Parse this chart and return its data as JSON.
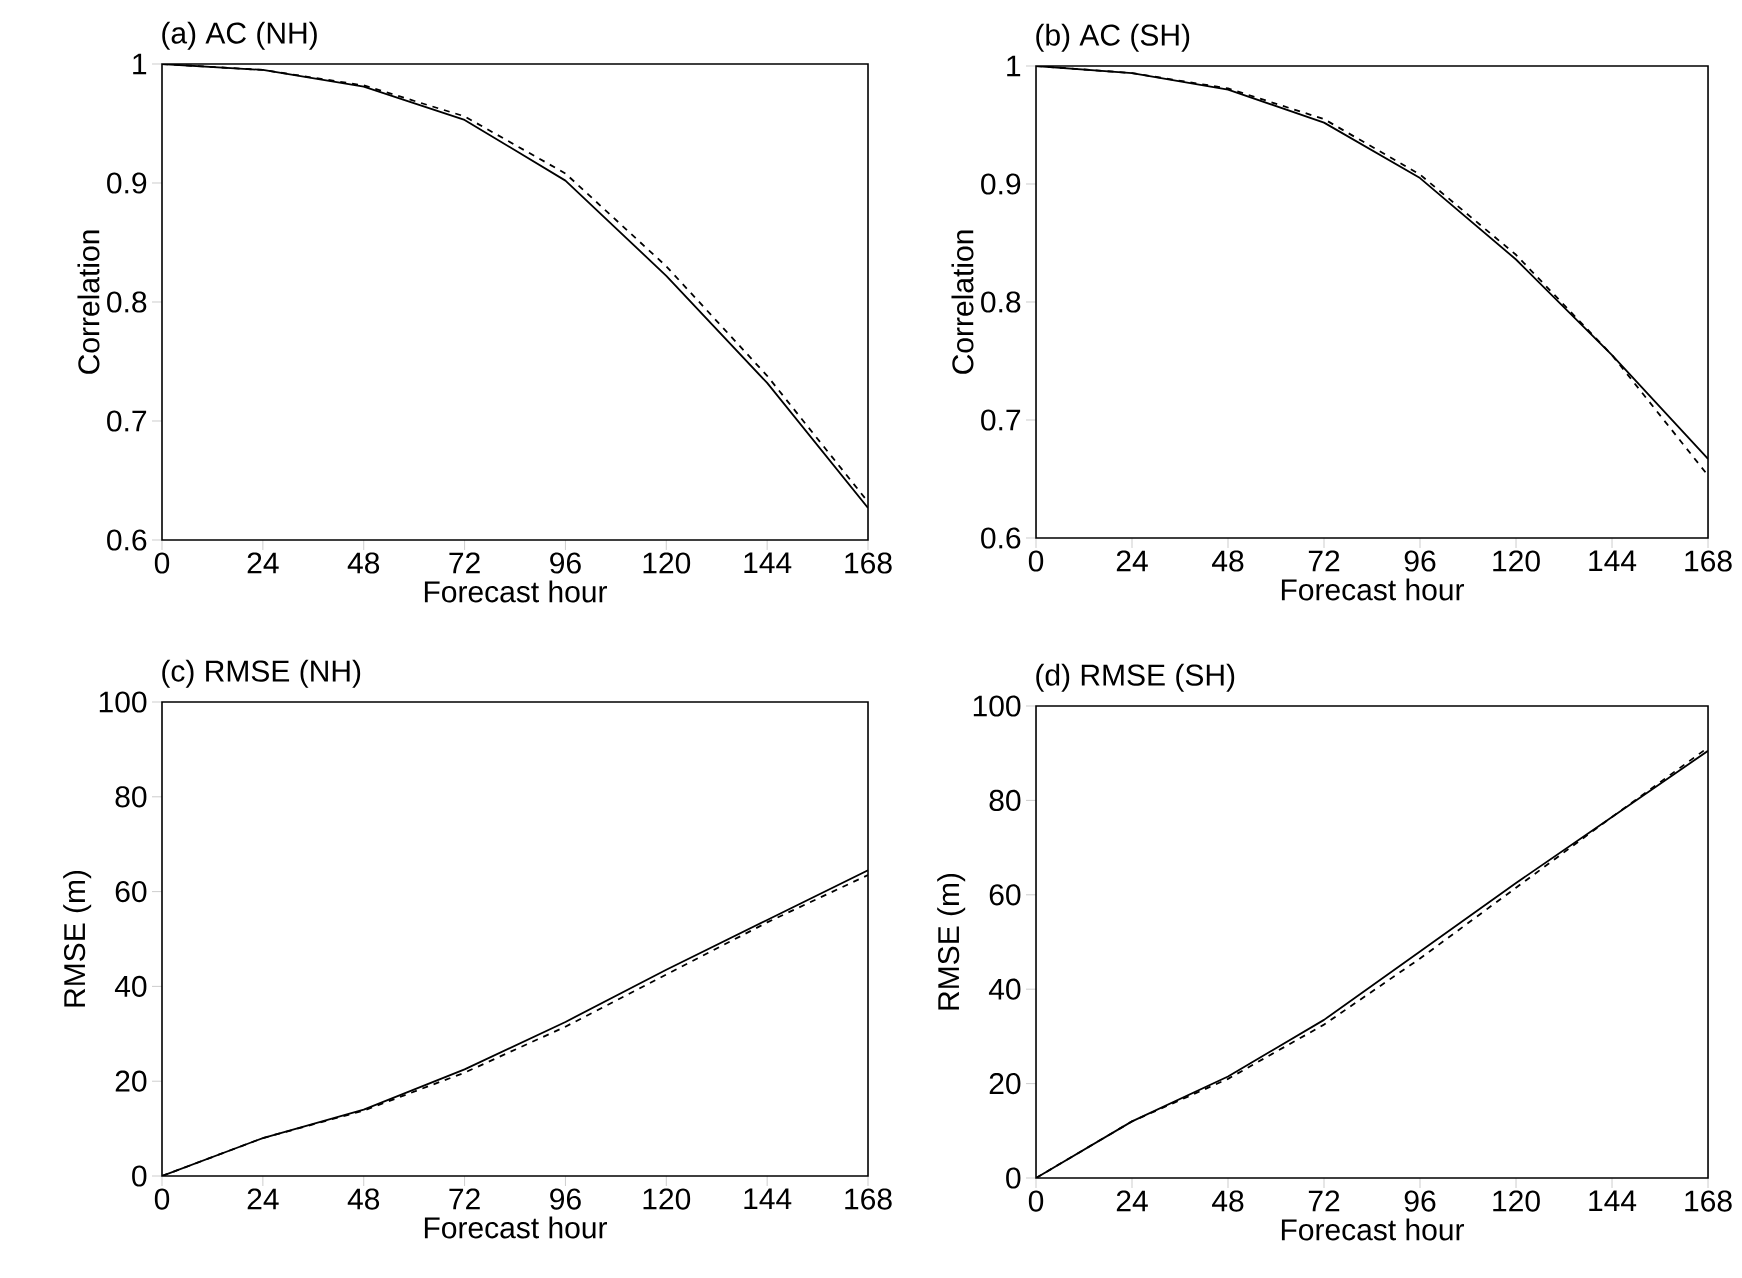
{
  "chart_data": [
    {
      "type": "line",
      "title": "(a) AC (NH)",
      "xlabel": "Forecast hour",
      "ylabel": "Correlation",
      "x": [
        0,
        24,
        48,
        72,
        96,
        120,
        144,
        168
      ],
      "xlim": [
        0,
        168
      ],
      "xticks": [
        0,
        24,
        48,
        72,
        96,
        120,
        144,
        168
      ],
      "ylim": [
        0.6,
        1
      ],
      "yticks": [
        0.6,
        0.7,
        0.8,
        0.9,
        1
      ],
      "grid": false,
      "series": [
        {
          "color": "#000000",
          "line_style": "solid",
          "values": [
            1,
            0.995,
            0.981,
            0.953,
            0.902,
            0.822,
            0.732,
            0.627
          ]
        },
        {
          "color": "#000000",
          "line_style": "dashed",
          "values": [
            1,
            0.995,
            0.982,
            0.956,
            0.908,
            0.83,
            0.738,
            0.632
          ]
        }
      ]
    },
    {
      "type": "line",
      "title": "(b) AC (SH)",
      "xlabel": "Forecast hour",
      "ylabel": "Correlation",
      "x": [
        0,
        24,
        48,
        72,
        96,
        120,
        144,
        168
      ],
      "xlim": [
        0,
        168
      ],
      "xticks": [
        0,
        24,
        48,
        72,
        96,
        120,
        144,
        168
      ],
      "ylim": [
        0.6,
        1
      ],
      "yticks": [
        0.6,
        0.7,
        0.8,
        0.9,
        1
      ],
      "grid": false,
      "series": [
        {
          "color": "#000000",
          "line_style": "solid",
          "values": [
            1,
            0.994,
            0.98,
            0.952,
            0.905,
            0.836,
            0.755,
            0.667
          ]
        },
        {
          "color": "#000000",
          "line_style": "dashed",
          "values": [
            1,
            0.994,
            0.981,
            0.955,
            0.908,
            0.84,
            0.755,
            0.653
          ]
        }
      ]
    },
    {
      "type": "line",
      "title": "(c) RMSE (NH)",
      "xlabel": "Forecast hour",
      "ylabel": "RMSE (m)",
      "x": [
        0,
        24,
        48,
        72,
        96,
        120,
        144,
        168
      ],
      "xlim": [
        0,
        168
      ],
      "xticks": [
        0,
        24,
        48,
        72,
        96,
        120,
        144,
        168
      ],
      "ylim": [
        0,
        100
      ],
      "yticks": [
        0,
        20,
        40,
        60,
        80,
        100
      ],
      "grid": false,
      "series": [
        {
          "color": "#000000",
          "line_style": "solid",
          "values": [
            0,
            8,
            14,
            22.5,
            32.5,
            43.5,
            54,
            64.5
          ]
        },
        {
          "color": "#000000",
          "line_style": "dashed",
          "values": [
            0,
            8,
            13.8,
            21.8,
            31.5,
            42.5,
            53.5,
            63.5
          ]
        }
      ]
    },
    {
      "type": "line",
      "title": "(d) RMSE (SH)",
      "xlabel": "Forecast hour",
      "ylabel": "RMSE (m)",
      "x": [
        0,
        24,
        48,
        72,
        96,
        120,
        144,
        168
      ],
      "xlim": [
        0,
        168
      ],
      "xticks": [
        0,
        24,
        48,
        72,
        96,
        120,
        144,
        168
      ],
      "ylim": [
        0,
        100
      ],
      "yticks": [
        0,
        20,
        40,
        60,
        80,
        100
      ],
      "grid": false,
      "series": [
        {
          "color": "#000000",
          "line_style": "solid",
          "values": [
            0,
            12,
            21.5,
            33.5,
            48,
            62.5,
            76.5,
            90.5
          ]
        },
        {
          "color": "#000000",
          "line_style": "dashed",
          "values": [
            0,
            12,
            21,
            32.5,
            46.5,
            61.5,
            76.5,
            91.2
          ]
        }
      ]
    }
  ]
}
